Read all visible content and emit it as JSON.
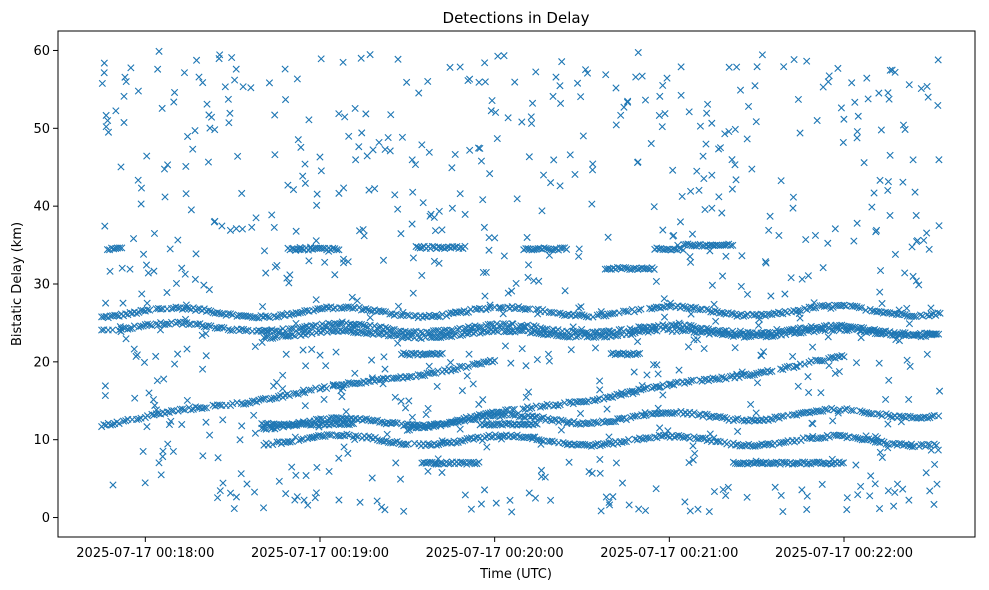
{
  "chart_data": {
    "type": "scatter",
    "title": "Detections in Delay",
    "xlabel": "Time (UTC)",
    "ylabel": "Bistatic Delay (km)",
    "x_unit": "seconds",
    "x_ticks": [
      {
        "t": 60,
        "label": "2025-07-17 00:18:00"
      },
      {
        "t": 120,
        "label": "2025-07-17 00:19:00"
      },
      {
        "t": 180,
        "label": "2025-07-17 00:20:00"
      },
      {
        "t": 240,
        "label": "2025-07-17 00:21:00"
      },
      {
        "t": 300,
        "label": "2025-07-17 00:22:00"
      }
    ],
    "x_range_seconds_after_00_17_00": [
      45.0,
      333.0
    ],
    "xlim_seconds_after_00_17_00": [
      30.0,
      345.0
    ],
    "ylim": [
      -2.5,
      62.5
    ],
    "y_ticks": [
      0,
      10,
      20,
      30,
      40,
      50,
      60
    ],
    "grid": false,
    "marker": "x",
    "color": "#1f77b4",
    "series": [
      {
        "kind": "track",
        "t_start": 45,
        "t_end": 333,
        "y_start": 26.3,
        "y_end": 26.6,
        "wave": 0.6
      },
      {
        "kind": "track",
        "t_start": 45,
        "t_end": 333,
        "y_start": 24.5,
        "y_end": 24.0,
        "wave": 0.5
      },
      {
        "kind": "track",
        "t_start": 45,
        "t_end": 180,
        "y_start": 12.0,
        "y_end": 20.0,
        "wave": 0.2
      },
      {
        "kind": "track",
        "t_start": 150,
        "t_end": 300,
        "y_start": 11.5,
        "y_end": 20.5,
        "wave": 0.2
      },
      {
        "kind": "track",
        "t_start": 100,
        "t_end": 333,
        "y_start": 12.0,
        "y_end": 13.5,
        "wave": 0.6
      },
      {
        "kind": "track",
        "t_start": 100,
        "t_end": 333,
        "y_start": 10.0,
        "y_end": 9.8,
        "wave": 0.6
      },
      {
        "kind": "track",
        "t_start": 100,
        "t_end": 333,
        "y_start": 23.5,
        "y_end": 23.8,
        "wave": 0.4
      },
      {
        "kind": "segment",
        "t_start": 47,
        "t_end": 52,
        "y": 34.5
      },
      {
        "kind": "segment",
        "t_start": 109,
        "t_end": 127,
        "y": 34.5
      },
      {
        "kind": "segment",
        "t_start": 153,
        "t_end": 170,
        "y": 34.7
      },
      {
        "kind": "segment",
        "t_start": 190,
        "t_end": 205,
        "y": 34.5
      },
      {
        "kind": "segment",
        "t_start": 235,
        "t_end": 245,
        "y": 34.5
      },
      {
        "kind": "segment",
        "t_start": 245,
        "t_end": 262,
        "y": 35.0
      },
      {
        "kind": "segment",
        "t_start": 100,
        "t_end": 132,
        "y": 12.0
      },
      {
        "kind": "segment",
        "t_start": 155,
        "t_end": 175,
        "y": 7.0
      },
      {
        "kind": "segment",
        "t_start": 175,
        "t_end": 195,
        "y": 12.0
      },
      {
        "kind": "segment",
        "t_start": 262,
        "t_end": 300,
        "y": 7.0
      },
      {
        "kind": "segment",
        "t_start": 218,
        "t_end": 235,
        "y": 32.0
      },
      {
        "kind": "segment",
        "t_start": 148,
        "t_end": 162,
        "y": 21.0
      },
      {
        "kind": "segment",
        "t_start": 220,
        "t_end": 230,
        "y": 21.0
      }
    ],
    "noise": {
      "count": 780,
      "t_range": [
        45,
        333
      ],
      "y_range": [
        0.5,
        60
      ]
    }
  }
}
